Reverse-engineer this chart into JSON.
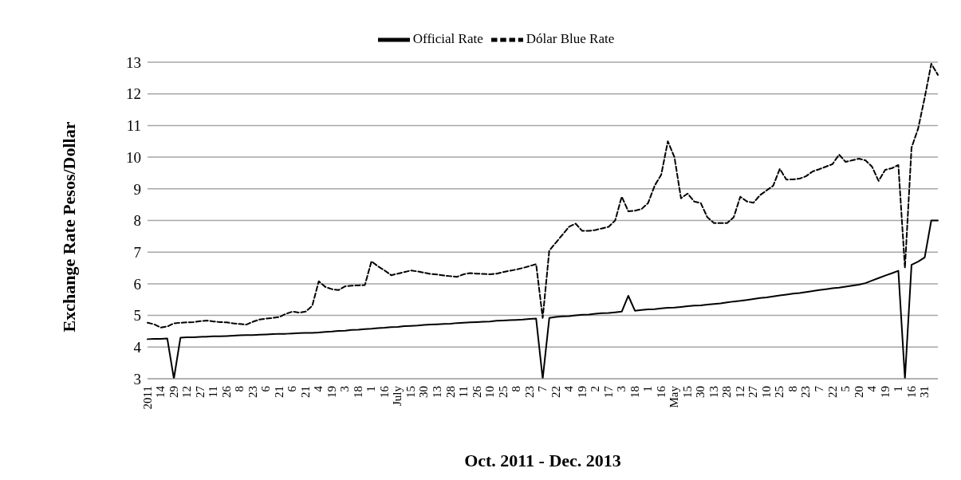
{
  "chart_data": {
    "type": "line",
    "xlabel": "Oct. 2011 - Dec. 2013",
    "ylabel": "Exchange Rate Pesos/Dollar",
    "categories": [
      "2011",
      null,
      "14",
      null,
      "29",
      null,
      "12",
      null,
      "27",
      null,
      "11",
      null,
      "26",
      null,
      "8",
      null,
      "23",
      null,
      "6",
      null,
      "21",
      null,
      "6",
      null,
      "21",
      null,
      "4",
      null,
      "19",
      null,
      "3",
      null,
      "18",
      null,
      "1",
      null,
      "16",
      null,
      "July",
      null,
      "15",
      null,
      "30",
      null,
      "13",
      null,
      "28",
      null,
      "11",
      null,
      "26",
      null,
      "10",
      null,
      "25",
      null,
      "8",
      null,
      "23",
      null,
      "7",
      null,
      "22",
      null,
      "4",
      null,
      "19",
      null,
      "2",
      null,
      "17",
      null,
      "3",
      null,
      "18",
      null,
      "1",
      null,
      "16",
      null,
      "May",
      null,
      "15",
      null,
      "30",
      null,
      "13",
      null,
      "28",
      null,
      "12",
      null,
      "27",
      null,
      "10",
      null,
      "25",
      null,
      "8",
      null,
      "23",
      null,
      "7",
      null,
      "22",
      null,
      "5",
      null,
      "20",
      null,
      "4",
      null,
      "19",
      null,
      "1",
      null,
      "16",
      null,
      "31",
      null,
      null
    ],
    "series": [
      {
        "name": "Official Rate",
        "color": "#000000",
        "line_style": "solid",
        "values": [
          4.25,
          4.26,
          4.26,
          4.27,
          3,
          4.3,
          4.31,
          4.31,
          4.32,
          4.33,
          4.34,
          4.34,
          4.35,
          4.36,
          4.37,
          4.38,
          4.38,
          4.39,
          4.4,
          4.41,
          4.42,
          4.42,
          4.43,
          4.44,
          4.45,
          4.45,
          4.46,
          4.48,
          4.49,
          4.51,
          4.52,
          4.54,
          4.55,
          4.57,
          4.58,
          4.6,
          4.61,
          4.63,
          4.64,
          4.66,
          4.67,
          4.68,
          4.7,
          4.71,
          4.72,
          4.73,
          4.74,
          4.76,
          4.77,
          4.78,
          4.79,
          4.8,
          4.81,
          4.83,
          4.84,
          4.85,
          4.86,
          4.87,
          4.89,
          4.9,
          3,
          4.92,
          4.95,
          4.97,
          4.98,
          5.0,
          5.02,
          5.03,
          5.05,
          5.07,
          5.08,
          5.1,
          5.12,
          5.62,
          5.15,
          5.17,
          5.19,
          5.2,
          5.22,
          5.24,
          5.25,
          5.27,
          5.29,
          5.31,
          5.32,
          5.34,
          5.36,
          5.38,
          5.41,
          5.44,
          5.46,
          5.49,
          5.52,
          5.55,
          5.57,
          5.6,
          5.63,
          5.66,
          5.69,
          5.71,
          5.74,
          5.77,
          5.8,
          5.83,
          5.86,
          5.88,
          5.91,
          5.94,
          5.97,
          6.02,
          6.1,
          6.18,
          6.26,
          6.33,
          6.41,
          3,
          6.6,
          6.7,
          6.83,
          8.0,
          8.0
        ]
      },
      {
        "name": "Dólar Blue Rate",
        "color": "#000000",
        "line_style": "dashed",
        "values": [
          4.77,
          4.72,
          4.62,
          4.65,
          4.75,
          4.77,
          4.78,
          4.79,
          4.82,
          4.84,
          4.81,
          4.79,
          4.78,
          4.75,
          4.73,
          4.71,
          4.8,
          4.87,
          4.9,
          4.92,
          4.95,
          5.05,
          5.12,
          5.09,
          5.12,
          5.3,
          6.08,
          5.9,
          5.83,
          5.8,
          5.92,
          5.94,
          5.95,
          5.96,
          6.71,
          6.55,
          6.42,
          6.27,
          6.32,
          6.37,
          6.42,
          6.39,
          6.35,
          6.31,
          6.29,
          6.26,
          6.24,
          6.22,
          6.3,
          6.34,
          6.32,
          6.31,
          6.3,
          6.32,
          6.37,
          6.41,
          6.45,
          6.5,
          6.56,
          6.62,
          4.92,
          7.05,
          7.3,
          7.55,
          7.8,
          7.9,
          7.67,
          7.67,
          7.7,
          7.75,
          7.8,
          8.0,
          8.75,
          8.29,
          8.31,
          8.36,
          8.55,
          9.1,
          9.45,
          10.5,
          10.0,
          8.7,
          8.85,
          8.6,
          8.55,
          8.1,
          7.92,
          7.92,
          7.92,
          8.1,
          8.75,
          8.6,
          8.56,
          8.8,
          8.95,
          9.1,
          9.63,
          9.29,
          9.3,
          9.32,
          9.4,
          9.55,
          9.62,
          9.7,
          9.78,
          10.08,
          9.85,
          9.9,
          9.95,
          9.9,
          9.7,
          9.25,
          9.6,
          9.65,
          9.75,
          6.5,
          10.3,
          10.9,
          11.88,
          12.95,
          12.6
        ]
      }
    ],
    "ylim": [
      3,
      13
    ],
    "yticks": [
      3,
      4,
      5,
      6,
      7,
      8,
      9,
      10,
      11,
      12,
      13
    ],
    "grid": "y",
    "legend": "top"
  }
}
